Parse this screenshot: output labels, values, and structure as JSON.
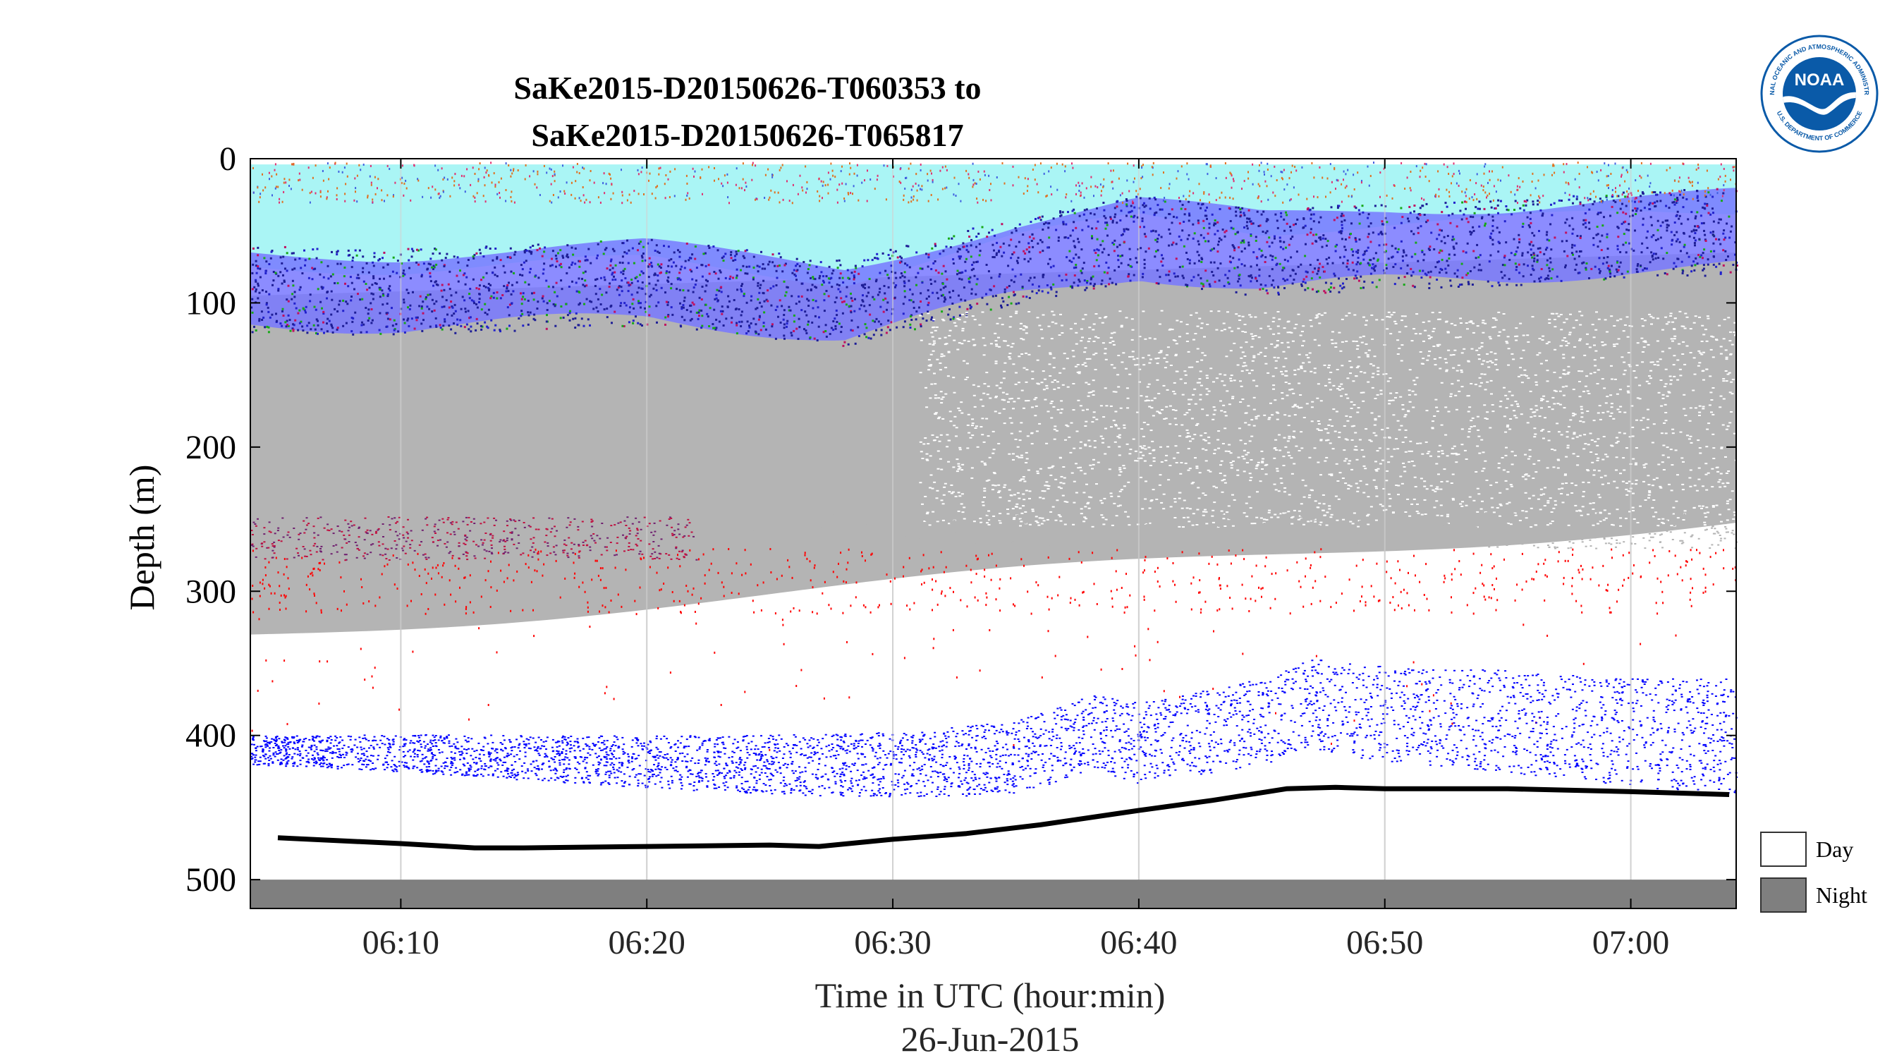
{
  "chart_data": {
    "type": "heatmap",
    "title_line1": "SaKe2015-D20150626-T060353 to",
    "title_line2": "SaKe2015-D20150626-T065817",
    "ylabel": "Depth (m)",
    "xlabel": "Time in UTC (hour:min)",
    "date_label": "26-Jun-2015",
    "y_reversed": true,
    "ylim": [
      0,
      520
    ],
    "xlim": [
      "06:03:53",
      "07:04:17"
    ],
    "y_ticks": [
      0,
      100,
      200,
      300,
      400,
      500
    ],
    "x_ticks": [
      "06:10",
      "06:20",
      "06:30",
      "06:40",
      "06:50",
      "07:00"
    ],
    "grid": true,
    "legend": {
      "position": "outside-right-bottom",
      "entries": [
        {
          "label": "Day",
          "color": "#ffffff"
        },
        {
          "label": "Night",
          "color": "#7f7f7f"
        }
      ]
    },
    "day_night_band": {
      "depth_range": [
        500,
        520
      ],
      "value": "Night",
      "color": "#7f7f7f"
    },
    "colors": {
      "surface": "#aaf5f5",
      "background_scatter": "#b4b4b4",
      "weak_layer": "#7878ff",
      "strong_layer": "#1e1e96",
      "deep_layer": "#0000ff",
      "red_scatter": "#ff0000",
      "bottom_line": "#000000",
      "grid": "#d2d2d2"
    },
    "seabed_depth_series": {
      "name": "",
      "x": [
        "06:05",
        "06:10",
        "06:13",
        "06:15",
        "06:20",
        "06:25",
        "06:27",
        "06:30",
        "06:33",
        "06:36",
        "06:40",
        "06:43",
        "06:46",
        "06:48",
        "06:50",
        "06:55",
        "07:00",
        "07:04"
      ],
      "y": [
        471,
        475,
        478,
        478,
        477,
        476,
        477,
        472,
        468,
        462,
        452,
        445,
        437,
        436,
        437,
        437,
        439,
        441
      ]
    },
    "deep_scattering_layer": {
      "x": [
        "06:04",
        "06:10",
        "06:20",
        "06:25",
        "06:30",
        "06:35",
        "06:38",
        "06:40",
        "06:42",
        "06:45",
        "06:47",
        "06:50",
        "06:55",
        "07:00",
        "07:04"
      ],
      "y": [
        410,
        412,
        418,
        420,
        420,
        415,
        398,
        405,
        400,
        390,
        378,
        385,
        390,
        398,
        400
      ]
    },
    "upper_layer_bottom": {
      "x": [
        "06:04",
        "06:10",
        "06:20",
        "06:28",
        "06:35",
        "06:40",
        "06:45",
        "06:50",
        "06:55",
        "07:00",
        "07:04"
      ],
      "y": [
        110,
        112,
        105,
        120,
        90,
        75,
        85,
        80,
        78,
        72,
        70
      ]
    }
  },
  "logo": {
    "text": "NOAA",
    "ring_text": "NATIONAL OCEANIC AND ATMOSPHERIC ADMINISTRATION",
    "ring_text_bottom": "U.S. DEPARTMENT OF COMMERCE",
    "color": "#0a5aa8"
  }
}
